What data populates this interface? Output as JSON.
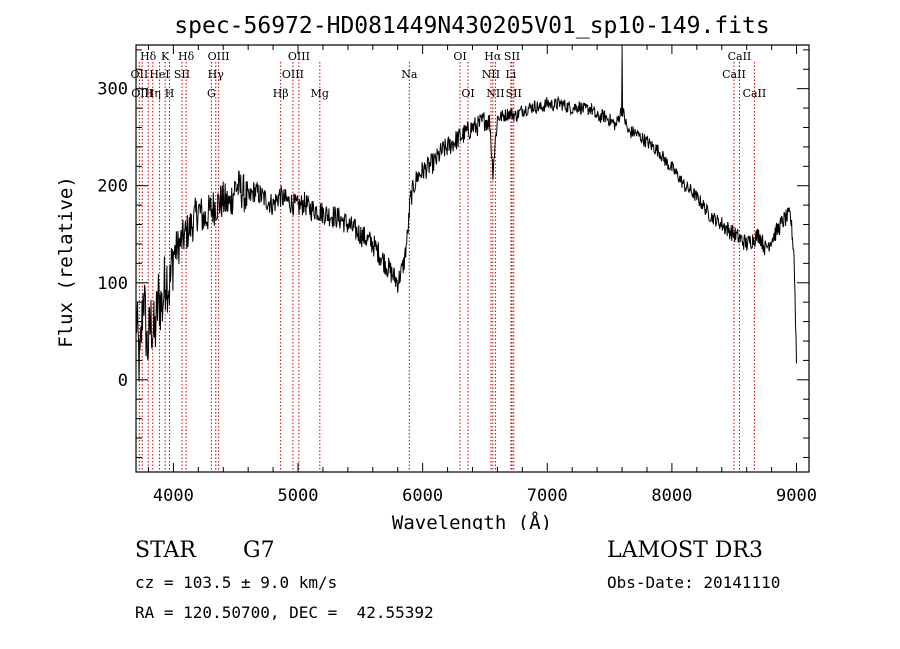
{
  "chart_data": {
    "type": "line",
    "title": "spec-56972-HD081449N430205V01_sp10-149.fits",
    "xlabel": "Wavelength (Å)",
    "ylabel": "Flux (relative)",
    "xlim": [
      3700,
      9100
    ],
    "ylim": [
      -95,
      345
    ],
    "x_ticks": [
      4000,
      5000,
      6000,
      7000,
      8000,
      9000
    ],
    "y_ticks": [
      0,
      100,
      200,
      300
    ],
    "line_color": "#000000",
    "marker_color": "#cc0000",
    "series": [
      {
        "name": "flux",
        "x": [
          3700,
          3730,
          3760,
          3790,
          3820,
          3850,
          3880,
          3910,
          3940,
          3970,
          4000,
          4050,
          4100,
          4150,
          4200,
          4250,
          4300,
          4340,
          4400,
          4450,
          4500,
          4550,
          4600,
          4650,
          4700,
          4750,
          4800,
          4850,
          4900,
          4950,
          5000,
          5050,
          5100,
          5150,
          5200,
          5250,
          5300,
          5350,
          5400,
          5450,
          5500,
          5550,
          5600,
          5650,
          5700,
          5750,
          5800,
          5850,
          5880,
          5900,
          5930,
          5960,
          6000,
          6050,
          6100,
          6150,
          6200,
          6250,
          6300,
          6350,
          6400,
          6450,
          6500,
          6540,
          6563,
          6600,
          6650,
          6700,
          6750,
          6800,
          6850,
          6900,
          6950,
          7000,
          7050,
          7100,
          7150,
          7200,
          7250,
          7300,
          7350,
          7400,
          7450,
          7500,
          7550,
          7600,
          7650,
          7700,
          7750,
          7800,
          7850,
          7900,
          7950,
          8000,
          8050,
          8100,
          8150,
          8200,
          8250,
          8300,
          8350,
          8400,
          8450,
          8500,
          8550,
          8600,
          8650,
          8700,
          8750,
          8800,
          8850,
          8900,
          8950,
          8980,
          9000
        ],
        "values": [
          70,
          10,
          95,
          30,
          60,
          45,
          85,
          75,
          110,
          95,
          130,
          140,
          150,
          160,
          175,
          165,
          175,
          180,
          185,
          180,
          200,
          195,
          185,
          195,
          190,
          185,
          180,
          190,
          185,
          182,
          178,
          182,
          176,
          175,
          172,
          170,
          168,
          165,
          160,
          155,
          150,
          145,
          140,
          130,
          120,
          110,
          100,
          120,
          150,
          185,
          200,
          210,
          215,
          220,
          225,
          235,
          240,
          245,
          250,
          255,
          260,
          262,
          268,
          265,
          215,
          270,
          272,
          275,
          272,
          278,
          280,
          282,
          280,
          285,
          283,
          285,
          282,
          280,
          282,
          278,
          280,
          270,
          272,
          268,
          262,
          280,
          255,
          255,
          250,
          245,
          240,
          235,
          225,
          218,
          210,
          200,
          195,
          188,
          180,
          170,
          165,
          160,
          155,
          150,
          145,
          140,
          145,
          150,
          135,
          145,
          155,
          165,
          170,
          130,
          20
        ]
      }
    ],
    "line_markers": [
      {
        "label": "Hδ",
        "x": 3798,
        "row": 1
      },
      {
        "label": "OII",
        "x": 3727,
        "row": 2
      },
      {
        "label": "OIII",
        "x": 3750,
        "row": 3
      },
      {
        "label": "HeI",
        "x": 3889,
        "row": 2
      },
      {
        "label": "Hη",
        "x": 3835,
        "row": 3
      },
      {
        "label": "K",
        "x": 3934,
        "row": 1
      },
      {
        "label": "SII",
        "x": 4069,
        "row": 2
      },
      {
        "label": "H",
        "x": 3969,
        "row": 3
      },
      {
        "label": "Hδ",
        "x": 4102,
        "row": 1
      },
      {
        "label": "OIII",
        "x": 4363,
        "row": 1
      },
      {
        "label": "Hγ",
        "x": 4340,
        "row": 2
      },
      {
        "label": "G",
        "x": 4305,
        "row": 3
      },
      {
        "label": "Hβ",
        "x": 4861,
        "row": 3
      },
      {
        "label": "OIII",
        "x": 5007,
        "row": 1
      },
      {
        "label": "OIII",
        "x": 4959,
        "row": 2
      },
      {
        "label": "Mg",
        "x": 5175,
        "row": 3
      },
      {
        "label": "Na",
        "x": 5893,
        "row": 2
      },
      {
        "label": "OI",
        "x": 6300,
        "row": 1
      },
      {
        "label": "OI",
        "x": 6364,
        "row": 3
      },
      {
        "label": "Hα",
        "x": 6563,
        "row": 1
      },
      {
        "label": "NII",
        "x": 6548,
        "row": 2
      },
      {
        "label": "NII",
        "x": 6584,
        "row": 3
      },
      {
        "label": "SII",
        "x": 6717,
        "row": 1
      },
      {
        "label": "Li",
        "x": 6708,
        "row": 2
      },
      {
        "label": "SII",
        "x": 6731,
        "row": 3
      },
      {
        "label": "CaII",
        "x": 8542,
        "row": 1
      },
      {
        "label": "CaII",
        "x": 8498,
        "row": 2
      },
      {
        "label": "CaII",
        "x": 8662,
        "row": 3
      }
    ]
  },
  "info": {
    "object_class": "STAR",
    "subclass": "G7",
    "survey": "LAMOST DR3",
    "cz": "cz = 103.5 ± 9.0 km/s",
    "obs_date": "Obs-Date: 20141110",
    "coords": "RA = 120.50700, DEC =  42.55392"
  }
}
